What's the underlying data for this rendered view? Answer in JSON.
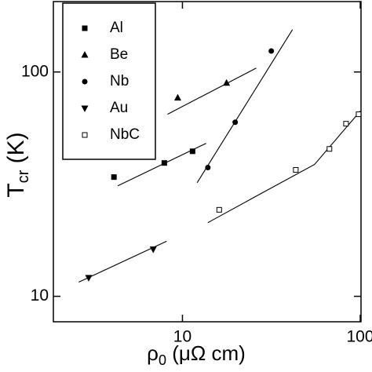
{
  "chart_data": {
    "type": "scatter",
    "xlabel_main": "ρ",
    "xlabel_sub": "0",
    "xlabel_rest": " (μΩ cm)",
    "ylabel_main": "T",
    "ylabel_sub": "cr",
    "ylabel_rest": " (K)",
    "xscale": "log",
    "yscale": "log",
    "xlim": [
      1.88,
      101
    ],
    "ylim": [
      7.7,
      206
    ],
    "xticks": [
      10,
      100
    ],
    "yticks": [
      10,
      100
    ],
    "legend": "upper left",
    "series": [
      {
        "name": "Al",
        "color": "#000000",
        "marker": "square",
        "x": [
          4.12,
          7.91,
          11.4
        ],
        "values": [
          34.0,
          39.3,
          44.3
        ],
        "fit_x": [
          4.33,
          13.6
        ],
        "fit_y": [
          31.1,
          48.1
        ]
      },
      {
        "name": "Be",
        "color": "#000000",
        "marker": "triangle-up",
        "x": [
          9.41,
          17.7
        ],
        "values": [
          76.7,
          89.3
        ],
        "fit_x": [
          8.24,
          26.0
        ],
        "fit_y": [
          64.8,
          104.1
        ]
      },
      {
        "name": "Nb",
        "color": "#000000",
        "marker": "circle",
        "x": [
          13.9,
          19.8,
          31.6
        ],
        "values": [
          37.5,
          59.7,
          124
        ],
        "fit_x": [
          12.1,
          41.6
        ],
        "fit_y": [
          32.1,
          154.5
        ]
      },
      {
        "name": "Au",
        "color": "#000000",
        "marker": "triangle-down",
        "x": [
          2.97,
          6.85
        ],
        "values": [
          12.1,
          16.2
        ],
        "fit_x": [
          2.61,
          8.15
        ],
        "fit_y": [
          11.56,
          17.6
        ]
      },
      {
        "name": "NbC",
        "color": "#000000",
        "marker": "square-open",
        "x": [
          16.1,
          43.4,
          67.1,
          83.2,
          97.9
        ],
        "values": [
          24.3,
          36.6,
          45.4,
          58.8,
          64.8
        ],
        "fit_x": [
          13.9,
          27.2,
          55.3,
          100
        ],
        "fit_y": [
          21.3,
          28.5,
          38.7,
          66.9
        ]
      }
    ]
  }
}
